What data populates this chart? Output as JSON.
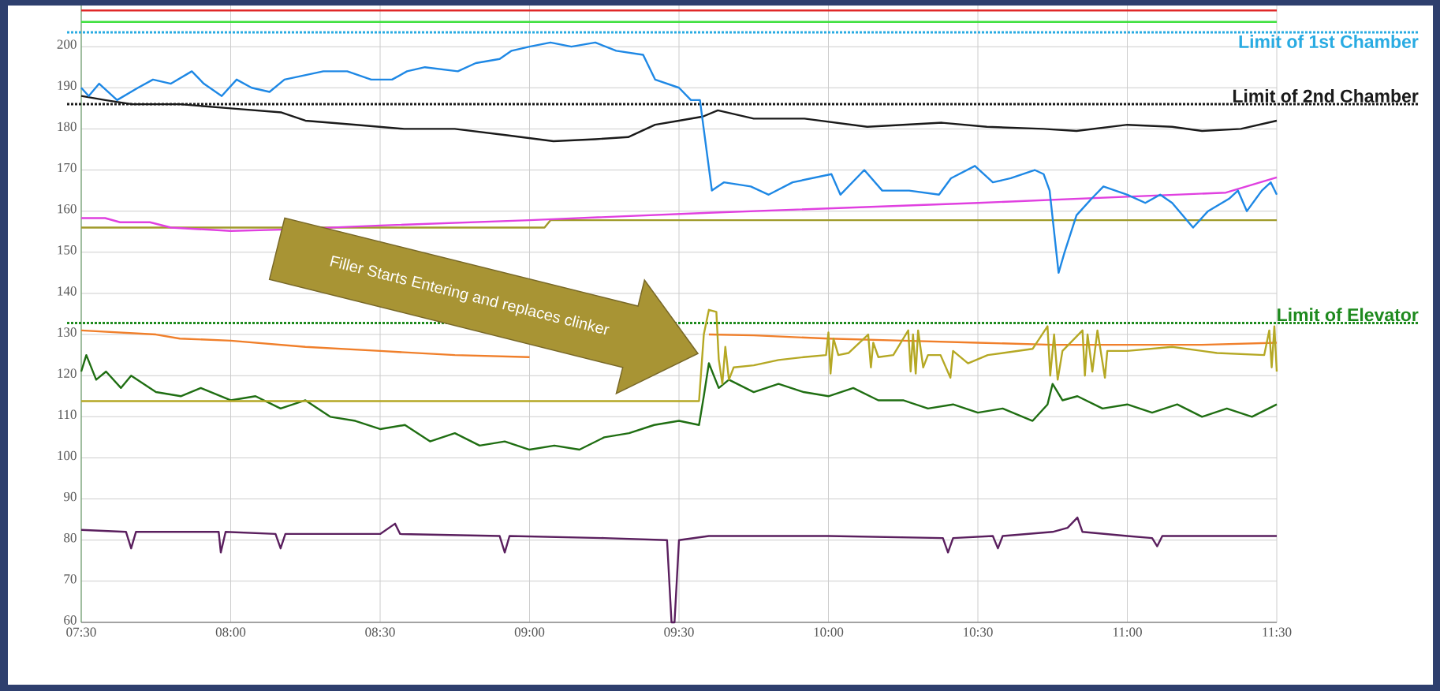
{
  "chart_data": {
    "type": "line",
    "marker": "none",
    "grid": true,
    "xlim": [
      7.5,
      11.5
    ],
    "ylim": [
      60,
      210
    ],
    "xticks": [
      {
        "value": 7.5,
        "label": "07:30"
      },
      {
        "value": 8.0,
        "label": "08:00"
      },
      {
        "value": 8.5,
        "label": "08:30"
      },
      {
        "value": 9.0,
        "label": "09:00"
      },
      {
        "value": 9.5,
        "label": "09:30"
      },
      {
        "value": 10.0,
        "label": "10:00"
      },
      {
        "value": 10.5,
        "label": "10:30"
      },
      {
        "value": 11.0,
        "label": "11:00"
      },
      {
        "value": 11.5,
        "label": "11:30"
      }
    ],
    "yticks": [
      60,
      70,
      80,
      90,
      100,
      110,
      120,
      130,
      140,
      150,
      160,
      170,
      180,
      190,
      200
    ],
    "series": [
      {
        "color": "#a09a2a",
        "x": [
          7.5,
          9.05,
          9.07,
          11.5
        ],
        "values": [
          156,
          156,
          157.8,
          157.8
        ]
      },
      {
        "color": "#e040e0",
        "x": [
          7.5,
          7.58,
          7.63,
          7.73,
          7.8,
          8.0,
          8.17,
          8.5,
          9.0,
          9.6,
          10.5,
          11.33,
          11.5
        ],
        "values": [
          158.3,
          158.3,
          157.3,
          157.3,
          156,
          155.2,
          155.5,
          156.5,
          157.8,
          159.6,
          162,
          164.5,
          168.2
        ]
      },
      {
        "color": "#5a1f5e",
        "x": [
          7.5,
          7.65,
          7.667,
          7.683,
          7.96,
          7.967,
          7.983,
          8.15,
          8.167,
          8.183,
          8.5,
          8.55,
          8.567,
          8.9,
          8.917,
          8.933,
          9.25,
          9.46,
          9.475,
          9.485,
          9.5,
          9.6,
          10.0,
          10.383,
          10.4,
          10.417,
          10.55,
          10.567,
          10.583,
          10.75,
          10.8,
          10.833,
          10.85,
          11.0,
          11.083,
          11.1,
          11.117,
          11.5
        ],
        "values": [
          82.5,
          82,
          78,
          82,
          82,
          77,
          82,
          81.5,
          78,
          81.5,
          81.5,
          84,
          81.5,
          81,
          77,
          81,
          80.5,
          80,
          60,
          60,
          80,
          81,
          81,
          80.5,
          77,
          80.5,
          81,
          78,
          81,
          82,
          83,
          85.5,
          82,
          81,
          80.5,
          78.5,
          81,
          81
        ]
      },
      {
        "color": "#1f6e12",
        "x": [
          7.5,
          7.517,
          7.55,
          7.583,
          7.633,
          7.667,
          7.75,
          7.833,
          7.9,
          8.0,
          8.083,
          8.167,
          8.25,
          8.333,
          8.417,
          8.5,
          8.583,
          8.667,
          8.75,
          8.833,
          8.917,
          9.0,
          9.083,
          9.167,
          9.25,
          9.333,
          9.417,
          9.5,
          9.567,
          9.583,
          9.6,
          9.633,
          9.667,
          9.75,
          9.833,
          9.917,
          10.0,
          10.083,
          10.167,
          10.25,
          10.333,
          10.417,
          10.5,
          10.583,
          10.683,
          10.733,
          10.75,
          10.783,
          10.833,
          10.917,
          11.0,
          11.083,
          11.167,
          11.25,
          11.333,
          11.417,
          11.5
        ],
        "values": [
          121,
          125,
          119,
          121,
          117,
          120,
          116,
          115,
          117,
          114,
          115,
          112,
          114,
          110,
          109,
          107,
          108,
          104,
          106,
          103,
          104,
          102,
          103,
          102,
          105,
          106,
          108,
          109,
          108,
          115,
          123,
          117,
          119,
          116,
          118,
          116,
          115,
          117,
          114,
          114,
          112,
          113,
          111,
          112,
          109,
          113,
          118,
          114,
          115,
          112,
          113,
          111,
          113,
          110,
          112,
          110,
          113
        ]
      },
      {
        "color": "#f07f2a",
        "x": [
          7.5,
          7.75,
          7.83,
          8.0,
          8.25,
          8.5,
          8.75,
          9.0,
          9.25,
          9.5,
          9.57,
          9.6,
          9.75,
          10.0,
          10.25,
          10.5,
          10.75,
          11.0,
          11.25,
          11.5
        ],
        "values": [
          131,
          130,
          129,
          128.5,
          127,
          126,
          125,
          124.5,
          null,
          null,
          null,
          130,
          129.8,
          129,
          128.5,
          128,
          127.5,
          127.5,
          127.5,
          128
        ]
      },
      {
        "color": "#b5a824",
        "x": [
          7.5,
          9.567,
          9.583,
          9.6,
          9.625,
          9.633,
          9.645,
          9.655,
          9.667,
          9.683,
          9.75,
          9.833,
          9.917,
          9.992,
          10.0,
          10.007,
          10.017,
          10.033,
          10.067,
          10.133,
          10.142,
          10.15,
          10.167,
          10.217,
          10.267,
          10.275,
          10.283,
          10.292,
          10.3,
          10.317,
          10.333,
          10.375,
          10.408,
          10.417,
          10.467,
          10.533,
          10.683,
          10.733,
          10.742,
          10.755,
          10.767,
          10.783,
          10.85,
          10.858,
          10.867,
          10.883,
          10.9,
          10.925,
          10.933,
          11.0,
          11.15,
          11.3,
          11.458,
          11.475,
          11.483,
          11.492,
          11.5
        ],
        "values": [
          113.8,
          113.8,
          130,
          136,
          135.5,
          124,
          118,
          127,
          119,
          122,
          122.5,
          123.8,
          124.5,
          125,
          130.5,
          120.5,
          129,
          125,
          125.5,
          130,
          122,
          128,
          124.5,
          125,
          131,
          121,
          130,
          120.5,
          131,
          122,
          125,
          125,
          119.5,
          126,
          123,
          125,
          126.5,
          132,
          120,
          130,
          119,
          126,
          131,
          120,
          130,
          121,
          131,
          119.5,
          126,
          126,
          127,
          125.5,
          125,
          131,
          122,
          132,
          121
        ]
      },
      {
        "color": "#1a1a1a",
        "x": [
          7.5,
          7.58,
          7.67,
          7.83,
          8.0,
          8.17,
          8.25,
          8.42,
          8.58,
          8.75,
          8.92,
          9.08,
          9.22,
          9.33,
          9.42,
          9.5,
          9.58,
          9.63,
          9.75,
          9.92,
          10.13,
          10.38,
          10.53,
          10.72,
          10.83,
          11.0,
          11.15,
          11.25,
          11.38,
          11.5
        ],
        "values": [
          188,
          187,
          186,
          186,
          185,
          184,
          182,
          181,
          180,
          180,
          178.5,
          177,
          177.5,
          178,
          181,
          182,
          183,
          184.5,
          182.5,
          182.5,
          180.5,
          181.5,
          180.5,
          180,
          179.5,
          181,
          180.5,
          179.5,
          180,
          182
        ]
      },
      {
        "color": "#1e88e5",
        "x": [
          7.5,
          7.525,
          7.56,
          7.62,
          7.69,
          7.74,
          7.8,
          7.87,
          7.91,
          7.97,
          8.02,
          8.07,
          8.13,
          8.18,
          8.31,
          8.39,
          8.47,
          8.54,
          8.59,
          8.65,
          8.76,
          8.82,
          8.9,
          8.94,
          9.0,
          9.07,
          9.14,
          9.22,
          9.29,
          9.38,
          9.42,
          9.5,
          9.54,
          9.57,
          9.61,
          9.65,
          9.74,
          9.8,
          9.88,
          10.01,
          10.04,
          10.12,
          10.18,
          10.27,
          10.37,
          10.41,
          10.49,
          10.55,
          10.61,
          10.69,
          10.72,
          10.74,
          10.77,
          10.79,
          10.83,
          10.88,
          10.92,
          11.0,
          11.06,
          11.11,
          11.15,
          11.22,
          11.27,
          11.34,
          11.37,
          11.4,
          11.45,
          11.48,
          11.5
        ],
        "values": [
          190,
          188,
          191,
          187,
          190,
          192,
          191,
          194,
          191,
          188,
          192,
          190,
          189,
          192,
          194,
          194,
          192,
          192,
          194,
          195,
          194,
          196,
          197,
          199,
          200,
          201,
          200,
          201,
          199,
          198,
          192,
          190,
          187,
          187,
          165,
          167,
          166,
          164,
          167,
          169,
          164,
          170,
          165,
          165,
          164,
          168,
          171,
          167,
          168,
          170,
          169,
          165,
          145,
          150,
          159,
          163,
          166,
          164,
          162,
          164,
          162,
          156,
          160,
          163,
          165,
          160,
          165,
          167,
          164
        ]
      }
    ],
    "ref_lines": [
      {
        "axis": "y",
        "value": 208.8,
        "color": "#e02828",
        "line_style": "solid"
      },
      {
        "axis": "y",
        "value": 206,
        "color": "#3ee03e",
        "line_style": "solid"
      },
      {
        "axis": "y",
        "value": 203.5,
        "color": "#29abe2",
        "line_style": "dotted",
        "label": "Limit of 1st Chamber"
      },
      {
        "axis": "y",
        "value": 186,
        "color": "#1a1a1a",
        "line_style": "dotted",
        "label": "Limit of 2nd Chamber"
      },
      {
        "axis": "y",
        "value": 132.8,
        "color": "#1e8a1e",
        "line_style": "dotted",
        "label": "Limit of Elevator"
      }
    ],
    "annotations": [
      "Filler Starts Entering and replaces clinker"
    ]
  }
}
